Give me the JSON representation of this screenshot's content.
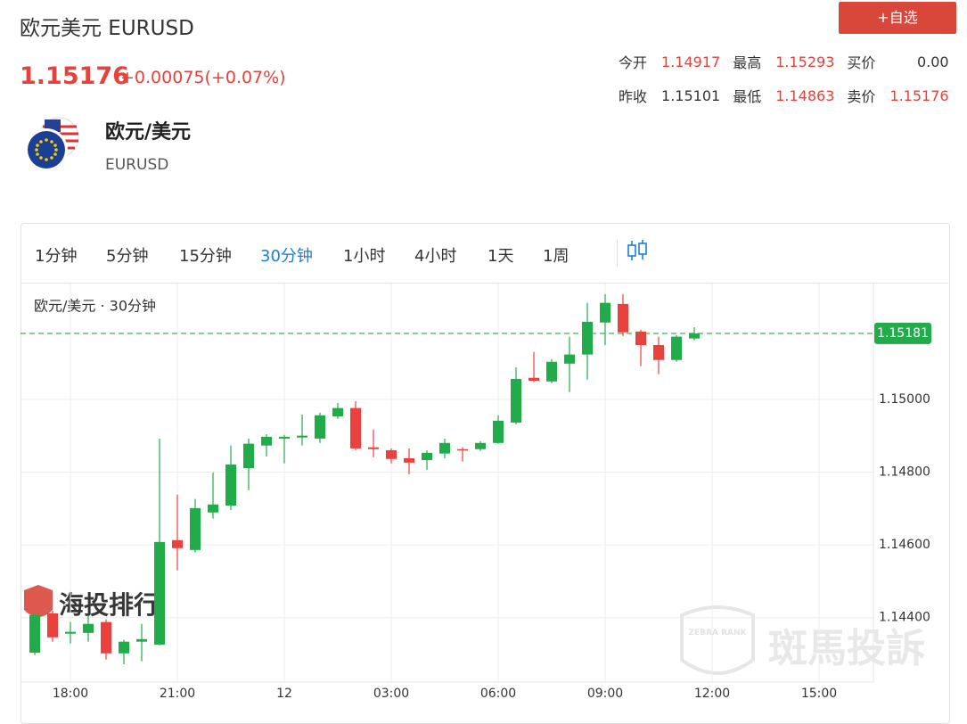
{
  "header": {
    "title": "欧元美元 EURUSD",
    "price": "1.15176",
    "change": "+0.00075(+0.07%)",
    "button": "+自选",
    "name": "欧元/美元",
    "code": "EURUSD",
    "stats": [
      [
        "今开",
        "1.14917",
        "最高",
        "1.15293",
        "买价",
        "0.00"
      ],
      [
        "昨收",
        "1.15101",
        "最低",
        "1.14863",
        "卖价",
        "1.15176"
      ]
    ]
  },
  "toolbar": {
    "intervals": [
      "1分钟",
      "5分钟",
      "15分钟",
      "30分钟",
      "1小时",
      "4小时",
      "1天",
      "1周"
    ],
    "active": 3
  },
  "chart_data": {
    "type": "candlestick",
    "title": "欧元/美元 · 30分钟",
    "categories": [
      null,
      null,
      "18:00",
      null,
      null,
      null,
      null,
      null,
      "21:00",
      null,
      null,
      null,
      null,
      null,
      "12",
      null,
      null,
      null,
      null,
      null,
      "03:00",
      null,
      null,
      null,
      null,
      null,
      "06:00",
      null,
      null,
      null,
      null,
      null,
      "09:00",
      null,
      null,
      null,
      null,
      null,
      "12:00",
      null,
      null,
      null,
      null,
      null,
      "15:00",
      null,
      null,
      null
    ],
    "open": [
      1.14304,
      1.14412,
      1.14356,
      1.14358,
      1.14388,
      1.14302,
      1.14334,
      1.14326,
      1.14613,
      1.14586,
      1.14689,
      1.14708,
      1.14811,
      1.14873,
      1.14892,
      1.14895,
      1.14892,
      1.14953,
      1.14976,
      1.14868,
      1.1486,
      1.14838,
      1.14833,
      1.14851,
      1.14863,
      1.14863,
      1.1488,
      1.14936,
      1.15059,
      1.15049,
      1.15098,
      1.15123,
      1.15211,
      1.15262,
      1.15186,
      1.15149,
      1.15108,
      1.15167,
      null,
      null,
      null,
      null,
      null,
      null,
      null,
      null,
      null,
      null
    ],
    "high": [
      1.14412,
      1.14419,
      1.14388,
      1.14407,
      1.14395,
      1.14339,
      1.14383,
      1.14892,
      1.14738,
      1.14726,
      1.14799,
      1.14873,
      1.14892,
      1.14904,
      1.14902,
      1.14958,
      1.14963,
      1.1499,
      1.14995,
      1.14917,
      1.14865,
      1.14865,
      1.1486,
      1.14892,
      1.14868,
      1.14885,
      1.14956,
      1.15088,
      1.1513,
      1.1511,
      1.15172,
      1.15265,
      1.15289,
      1.15289,
      1.15191,
      1.15172,
      1.15176,
      1.15198,
      null,
      null,
      null,
      null,
      null,
      null,
      null,
      null,
      null,
      null
    ],
    "low": [
      1.14297,
      1.14334,
      1.14329,
      1.14334,
      1.14285,
      1.14272,
      1.1428,
      1.14324,
      1.1453,
      1.14579,
      1.14672,
      1.14696,
      1.1475,
      1.14843,
      1.14824,
      1.14873,
      1.1488,
      1.14946,
      1.1486,
      1.14841,
      1.14824,
      1.14794,
      1.14806,
      1.14838,
      1.14829,
      1.14858,
      1.14878,
      1.14931,
      1.15047,
      1.15044,
      1.1502,
      1.15054,
      1.15149,
      1.15174,
      1.15091,
      1.15069,
      1.15103,
      1.15162,
      null,
      null,
      null,
      null,
      null,
      null,
      null,
      null,
      null,
      null
    ],
    "close": [
      1.14407,
      1.14346,
      1.14361,
      1.14383,
      1.14302,
      1.14334,
      1.14341,
      1.14608,
      1.14591,
      1.14701,
      1.14711,
      1.14821,
      1.14878,
      1.14897,
      1.14897,
      1.149,
      1.14956,
      1.14976,
      1.14865,
      1.14863,
      1.14836,
      1.14826,
      1.14853,
      1.1488,
      1.1486,
      1.1488,
      1.14941,
      1.15056,
      1.15051,
      1.15103,
      1.15123,
      1.15213,
      1.15265,
      1.15184,
      1.15149,
      1.15108,
      1.15172,
      1.15181,
      null,
      null,
      null,
      null,
      null,
      null,
      null,
      null,
      null,
      null
    ],
    "up_color": "#22ab4a",
    "down_color": "#e8413e",
    "ylim": [
      1.14223,
      1.15318
    ],
    "yticks": [
      {
        "value": 1.144,
        "label": "1.14400"
      },
      {
        "value": 1.146,
        "label": "1.14600"
      },
      {
        "value": 1.148,
        "label": "1.14800"
      },
      {
        "value": 1.15,
        "label": "1.15000"
      }
    ],
    "grid": true,
    "last_price": 1.15181,
    "watermarks": [
      "海投排行",
      "ZEBRA RANK",
      "斑馬投訴"
    ]
  }
}
